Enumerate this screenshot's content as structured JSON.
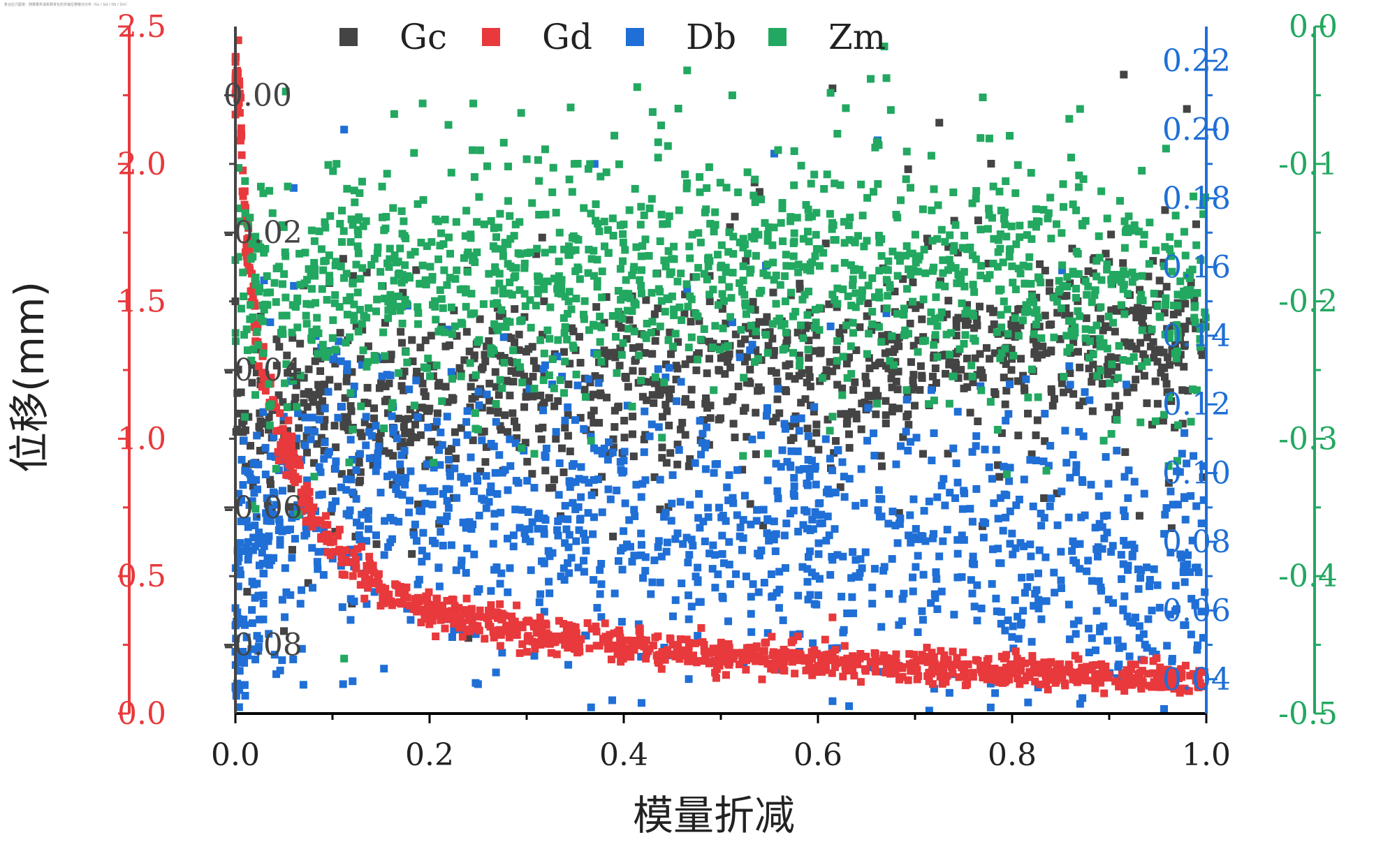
{
  "header_note": "复合应力图谱：随模量折减系数变化的多轴位移散点分布（Gc / Gd / Db / Zm）",
  "chart_data": {
    "type": "scatter",
    "title": "",
    "xlabel": "模量折减",
    "ylabel": "位移(mm)",
    "xlim": [
      0.0,
      1.0
    ],
    "x_ticks": [
      "0.0",
      "0.2",
      "0.4",
      "0.6",
      "0.8",
      "1.0"
    ],
    "axes": {
      "gd_left": {
        "color": "#e8393c",
        "range": [
          0.0,
          2.5
        ],
        "ticks": [
          "0.0",
          "0.5",
          "1.0",
          "1.5",
          "2.0",
          "2.5"
        ]
      },
      "gc_inner": {
        "color": "#444444",
        "range": [
          -0.09,
          0.01
        ],
        "ticks": [
          "-0.08",
          "-0.06",
          "-0.04",
          "-0.02",
          "0.00"
        ]
      },
      "db_right": {
        "color": "#1f6fd6",
        "range": [
          0.03,
          0.23
        ],
        "ticks": [
          "0.04",
          "0.06",
          "0.08",
          "0.10",
          "0.12",
          "0.14",
          "0.16",
          "0.18",
          "0.20",
          "0.22"
        ]
      },
      "zm_right": {
        "color": "#22a860",
        "range": [
          -0.5,
          0.0
        ],
        "ticks": [
          "-0.5",
          "-0.4",
          "-0.3",
          "-0.2",
          "-0.1",
          "0.0"
        ]
      }
    },
    "legend": {
      "position": "top",
      "entries": [
        {
          "name": "Gc",
          "color": "#444444"
        },
        {
          "name": "Gd",
          "color": "#e8393c"
        },
        {
          "name": "Db",
          "color": "#1f6fd6"
        },
        {
          "name": "Zm",
          "color": "#22a860"
        }
      ]
    },
    "series": [
      {
        "name": "Gc",
        "axis": "gc_inner",
        "color": "#444444",
        "trend": {
          "x": [
            0.0,
            0.02,
            0.05,
            0.1,
            0.2,
            0.3,
            0.4,
            0.5,
            0.6,
            0.7,
            0.8,
            0.9,
            1.0
          ],
          "y": [
            -0.05,
            -0.047,
            -0.046,
            -0.045,
            -0.044,
            -0.043,
            -0.042,
            -0.041,
            -0.04,
            -0.039,
            -0.038,
            -0.037,
            -0.036
          ]
        },
        "spread": 0.0055,
        "sample_points": [
          {
            "x": 0.0,
            "y": -0.03
          },
          {
            "x": 0.05,
            "y": -0.078
          },
          {
            "x": 0.075,
            "y": -0.071
          },
          {
            "x": 0.12,
            "y": -0.074
          },
          {
            "x": 0.24,
            "y": -0.079
          },
          {
            "x": 0.615,
            "y": 0.001
          },
          {
            "x": 0.725,
            "y": -0.004
          },
          {
            "x": 0.915,
            "y": 0.003
          },
          {
            "x": 0.98,
            "y": -0.002
          }
        ]
      },
      {
        "name": "Gd",
        "axis": "gd_left",
        "color": "#e8393c",
        "trend": {
          "x": [
            0.003,
            0.01,
            0.02,
            0.03,
            0.05,
            0.08,
            0.1,
            0.15,
            0.2,
            0.3,
            0.4,
            0.5,
            0.6,
            0.7,
            0.8,
            0.9,
            1.0
          ],
          "y": [
            2.3,
            1.8,
            1.45,
            1.25,
            1.0,
            0.72,
            0.62,
            0.46,
            0.38,
            0.3,
            0.25,
            0.21,
            0.19,
            0.17,
            0.15,
            0.135,
            0.12
          ]
        },
        "spread": 0.04,
        "sample_points": [
          {
            "x": 0.003,
            "y": 2.45
          },
          {
            "x": 0.006,
            "y": 2.13
          },
          {
            "x": 0.615,
            "y": 0.35
          }
        ]
      },
      {
        "name": "Db",
        "axis": "db_right",
        "color": "#1f6fd6",
        "trend": {
          "x": [
            0.0,
            0.01,
            0.02,
            0.04,
            0.07,
            0.1,
            0.2,
            0.3,
            0.4,
            0.5,
            0.6,
            0.7,
            0.8,
            0.9,
            1.0
          ],
          "y": [
            0.048,
            0.065,
            0.077,
            0.087,
            0.092,
            0.094,
            0.092,
            0.09,
            0.087,
            0.084,
            0.082,
            0.08,
            0.077,
            0.074,
            0.072
          ]
        },
        "spread": 0.018,
        "sample_points": [
          {
            "x": 0.112,
            "y": 0.2
          },
          {
            "x": 0.37,
            "y": 0.19
          },
          {
            "x": 0.555,
            "y": 0.193
          },
          {
            "x": 0.0,
            "y": 0.048
          },
          {
            "x": 0.06,
            "y": 0.183
          }
        ]
      },
      {
        "name": "Zm",
        "axis": "zm_right",
        "color": "#22a860",
        "trend": {
          "x": [
            0.0,
            0.01,
            0.02,
            0.05,
            0.1,
            0.2,
            0.3,
            0.4,
            0.5,
            0.6,
            0.7,
            0.8,
            0.9,
            1.0
          ],
          "y": [
            -0.17,
            -0.19,
            -0.2,
            -0.2,
            -0.19,
            -0.18,
            -0.18,
            -0.18,
            -0.18,
            -0.18,
            -0.18,
            -0.185,
            -0.19,
            -0.195
          ]
        },
        "spread": 0.035,
        "sample_points": [
          {
            "x": 0.0,
            "y": -0.17
          },
          {
            "x": 0.112,
            "y": -0.46
          },
          {
            "x": 0.245,
            "y": -0.056
          },
          {
            "x": 0.62,
            "y": -0.078
          },
          {
            "x": 0.87,
            "y": -0.06
          }
        ]
      }
    ]
  }
}
